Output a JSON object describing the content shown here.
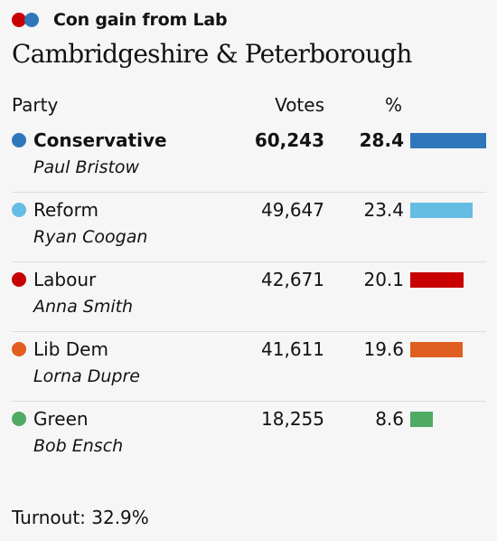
{
  "header": {
    "gain_label": "Con gain from Lab",
    "from_color": "#c70000",
    "to_color": "#2e77bb",
    "constituency": "Cambridgeshire & Peterborough"
  },
  "table": {
    "col_party": "Party",
    "col_votes": "Votes",
    "col_pct": "%",
    "rows": [
      {
        "party": "Conservative",
        "candidate": "Paul Bristow",
        "votes": "60,243",
        "pct": "28.4",
        "color": "#2e77bb",
        "winner": true
      },
      {
        "party": "Reform",
        "candidate": "Ryan Coogan",
        "votes": "49,647",
        "pct": "23.4",
        "color": "#66bde3",
        "winner": false
      },
      {
        "party": "Labour",
        "candidate": "Anna Smith",
        "votes": "42,671",
        "pct": "20.1",
        "color": "#c70000",
        "winner": false
      },
      {
        "party": "Lib Dem",
        "candidate": "Lorna Dupre",
        "votes": "41,611",
        "pct": "19.6",
        "color": "#e05e20",
        "winner": false
      },
      {
        "party": "Green",
        "candidate": "Bob Ensch",
        "votes": "18,255",
        "pct": "8.6",
        "color": "#4faa64",
        "winner": false
      }
    ]
  },
  "footer": {
    "turnout": "Turnout: 32.9%"
  }
}
